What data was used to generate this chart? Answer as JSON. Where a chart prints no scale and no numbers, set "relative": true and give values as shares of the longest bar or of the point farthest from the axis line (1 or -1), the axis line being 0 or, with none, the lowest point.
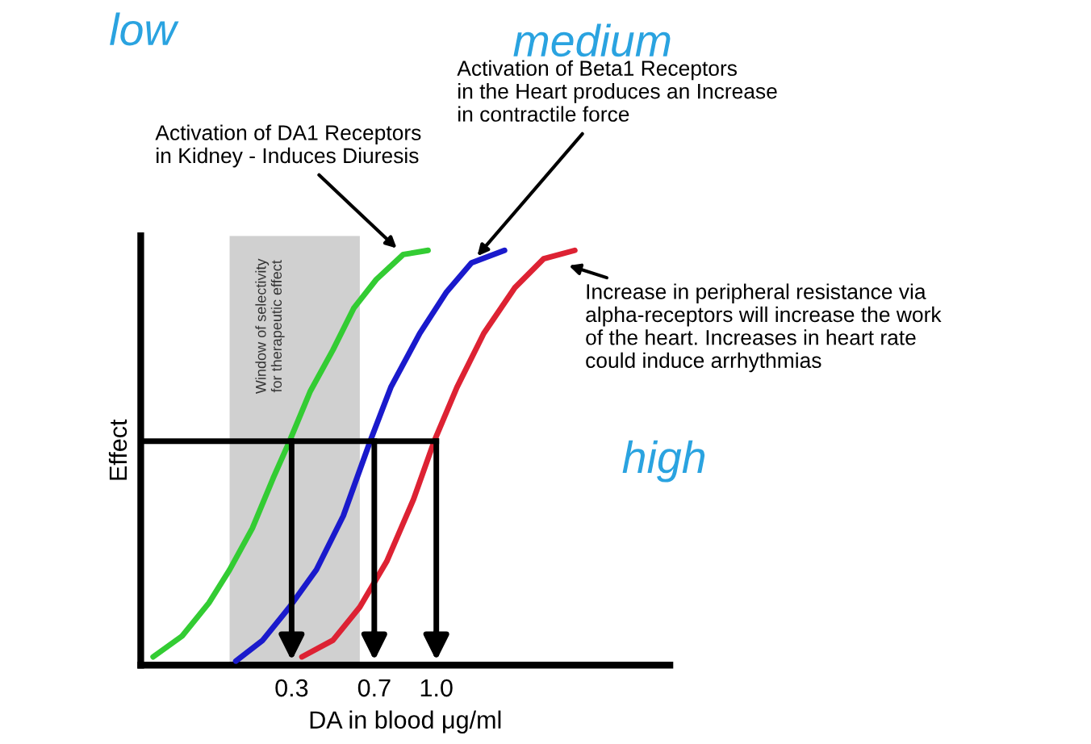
{
  "chart_data": {
    "type": "line",
    "relative": true,
    "xlabel": "DA in blood μg/ml",
    "ylabel": "Effect",
    "xlim": [
      -0.43,
      2.13
    ],
    "xticks": [
      0.3,
      0.7,
      {
        "value": 1.0,
        "label": "1.0"
      }
    ],
    "grid": false,
    "legend": false,
    "marker": "none",
    "line_style": "solid",
    "series": [
      {
        "color": "#33cc33",
        "x": [
          -0.37,
          -0.23,
          -0.1,
          0.0,
          0.11,
          0.21,
          0.29,
          0.39,
          0.5,
          0.6,
          0.71,
          0.84,
          0.96
        ],
        "values": [
          0.02,
          0.07,
          0.15,
          0.23,
          0.33,
          0.45,
          0.54,
          0.66,
          0.76,
          0.86,
          0.93,
          0.99,
          1.0
        ]
      },
      {
        "color": "#1a1acc",
        "x": [
          0.03,
          0.16,
          0.29,
          0.42,
          0.55,
          0.68,
          0.78,
          0.92,
          1.05,
          1.17,
          1.33
        ],
        "values": [
          0.01,
          0.06,
          0.14,
          0.23,
          0.36,
          0.54,
          0.67,
          0.8,
          0.9,
          0.97,
          1.0
        ]
      },
      {
        "color": "#dd2233",
        "x": [
          0.35,
          0.5,
          0.63,
          0.76,
          0.89,
          0.99,
          1.1,
          1.23,
          1.38,
          1.52,
          1.67
        ],
        "values": [
          0.02,
          0.06,
          0.14,
          0.25,
          0.4,
          0.54,
          0.67,
          0.8,
          0.91,
          0.98,
          1.0
        ]
      }
    ],
    "bands": [
      {
        "axis": "x",
        "from": 0.0,
        "to": 0.63,
        "label": "Window of selectivity\nfor therapeutic effect",
        "color": "#d0d0d0"
      }
    ],
    "ref_lines": [
      {
        "axis": "y",
        "value": 0.54,
        "color": "#000000"
      },
      {
        "axis": "x",
        "value": 0.3,
        "color": "#000000"
      },
      {
        "axis": "x",
        "value": 0.7,
        "color": "#000000"
      },
      {
        "axis": "x",
        "value": 1.0,
        "color": "#000000"
      }
    ],
    "annotations": [
      {
        "text": "Activation of DA1 Receptors\nin Kidney - Induces Diuresis",
        "x": 0.84,
        "y": 0.99
      },
      {
        "text": "Activation of Beta1 Receptors\nin the Heart produces an Increase\nin contractile force",
        "x": 1.17,
        "y": 0.97
      },
      {
        "text": "Increase in peripheral resistance via\nalpha-receptors will increase the work\nof the heart. Increases in heart rate\ncould induce arrhythmias",
        "x": 1.6,
        "y": 0.97
      },
      "low",
      "medium",
      "high"
    ]
  }
}
